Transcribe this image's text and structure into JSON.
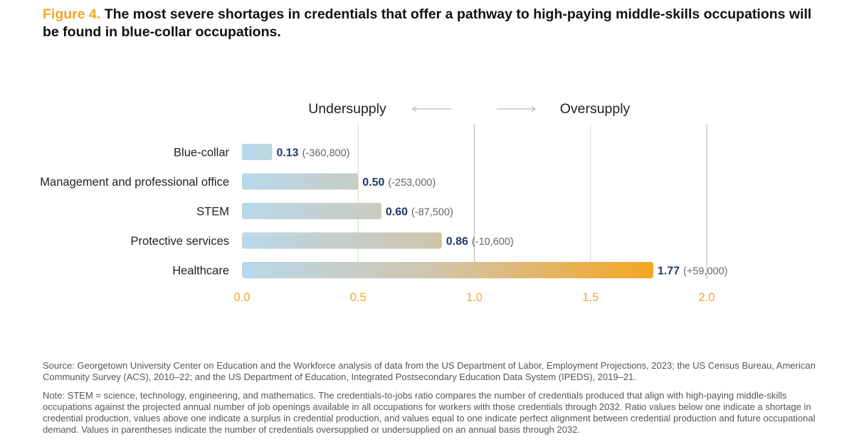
{
  "title": {
    "figure_label": "Figure 4.",
    "text": "The most severe shortages in credentials that offer a pathway to high-paying middle-skills occupations will be found in blue-collar occupations."
  },
  "chart_data": {
    "type": "bar",
    "orientation": "horizontal",
    "categories": [
      "Blue-collar",
      "Management and professional office",
      "STEM",
      "Protective services",
      "Healthcare"
    ],
    "values": [
      0.13,
      0.5,
      0.6,
      0.86,
      1.77
    ],
    "value_labels": [
      "0.13",
      "0.50",
      "0.60",
      "0.86",
      "1.77"
    ],
    "annotations": [
      "(-360,800)",
      "(-253,000)",
      "(-87,500)",
      "(-10,600)",
      "(+59,000)"
    ],
    "xlim": [
      0,
      2
    ],
    "x_ticks": [
      0,
      0.5,
      1,
      1.5,
      2
    ],
    "x_tick_labels": [
      "0.0",
      "0.5",
      "1.0",
      "1.5",
      "2.0"
    ],
    "direction_labels": {
      "left": "Undersupply",
      "right": "Oversupply"
    },
    "grid": true
  },
  "colors": {
    "accent": "#f5a623",
    "bar_start": "#b9d8ea",
    "bar_mid": "#cfc6ae",
    "bar_end": "#f5a623",
    "value_label": "#1f3a6b",
    "annotation": "#666666",
    "grid": "#dcdcdc",
    "reference_line": "#bdbdbd"
  },
  "footnotes": {
    "source": "Source: Georgetown University Center on Education and the Workforce analysis of data from the US Department of Labor, Employment Projections, 2023; the US Census Bureau, American Community Survey (ACS), 2010–22; and the US Department of Education, Integrated Postsecondary Education Data System (IPEDS), 2019–21.",
    "note": "Note: STEM = science, technology, engineering, and mathematics. The credentials-to-jobs ratio compares the number of credentials produced that align with high-paying middle-skills occupations against the projected annual number of job openings available in all occupations for workers with those credentials through 2032. Ratio values below one indicate a shortage in credential production, values above one indicate a surplus in credential production, and values equal to one indicate perfect alignment between credential production and future occupational demand. Values in parentheses indicate the number of credentials oversupplied or undersupplied on an annual basis through 2032."
  }
}
